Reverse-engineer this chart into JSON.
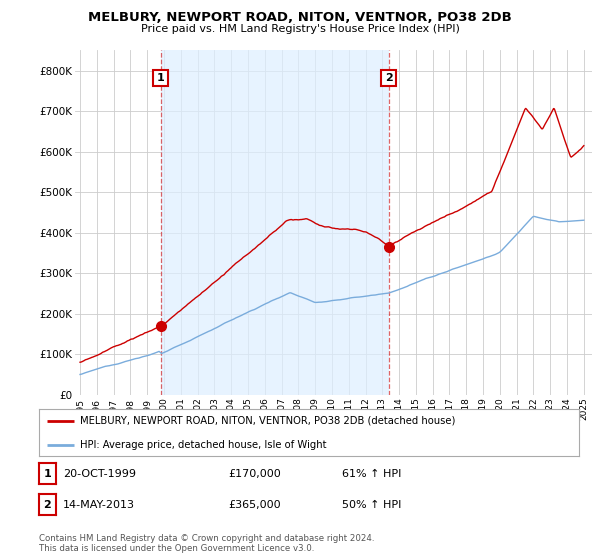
{
  "title": "MELBURY, NEWPORT ROAD, NITON, VENTNOR, PO38 2DB",
  "subtitle": "Price paid vs. HM Land Registry's House Price Index (HPI)",
  "ylim": [
    0,
    850000
  ],
  "yticks": [
    0,
    100000,
    200000,
    300000,
    400000,
    500000,
    600000,
    700000,
    800000
  ],
  "ytick_labels": [
    "£0",
    "£100K",
    "£200K",
    "£300K",
    "£400K",
    "£500K",
    "£600K",
    "£700K",
    "£800K"
  ],
  "xlim_start": 1994.7,
  "xlim_end": 2025.5,
  "xticks": [
    1995,
    1996,
    1997,
    1998,
    1999,
    2000,
    2001,
    2002,
    2003,
    2004,
    2005,
    2006,
    2007,
    2008,
    2009,
    2010,
    2011,
    2012,
    2013,
    2014,
    2015,
    2016,
    2017,
    2018,
    2019,
    2020,
    2021,
    2022,
    2023,
    2024,
    2025
  ],
  "red_line_color": "#cc0000",
  "blue_line_color": "#7aacdc",
  "shade_color": "#ddeeff",
  "purchase1_x": 1999.8,
  "purchase1_y": 170000,
  "purchase1_label": "1",
  "purchase2_x": 2013.37,
  "purchase2_y": 365000,
  "purchase2_label": "2",
  "vline_color": "#cc0000",
  "legend_red_label": "MELBURY, NEWPORT ROAD, NITON, VENTNOR, PO38 2DB (detached house)",
  "legend_blue_label": "HPI: Average price, detached house, Isle of Wight",
  "table_row1": [
    "1",
    "20-OCT-1999",
    "£170,000",
    "61% ↑ HPI"
  ],
  "table_row2": [
    "2",
    "14-MAY-2013",
    "£365,000",
    "50% ↑ HPI"
  ],
  "footnote": "Contains HM Land Registry data © Crown copyright and database right 2024.\nThis data is licensed under the Open Government Licence v3.0.",
  "background_color": "#ffffff",
  "grid_color": "#cccccc"
}
